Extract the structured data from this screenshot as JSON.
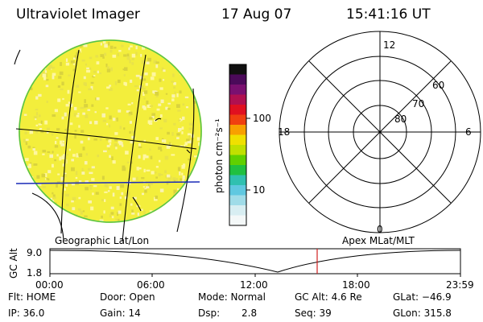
{
  "header": {
    "instrument": "Ultraviolet Imager",
    "date": "17 Aug 07",
    "time": "15:41:16 UT"
  },
  "colors": {
    "disk_fill": "#F3EE3C",
    "disk_edge": "#4FC24F",
    "grid_line": "#000000",
    "equator_line": "#1A2BB8",
    "marker_line": "#D02020"
  },
  "left_panel": {
    "caption": "Geographic Lat/Lon",
    "icon": "earth-disk"
  },
  "colorbar": {
    "unit_label": "photon cm⁻²s⁻¹",
    "ticks": [
      "100",
      "10"
    ],
    "scale": "log",
    "colors": [
      "#101010",
      "#4B0A5A",
      "#7A1070",
      "#B01050",
      "#E01020",
      "#F04010",
      "#F8A000",
      "#F0E000",
      "#C0E000",
      "#60D000",
      "#20C040",
      "#30C0B0",
      "#60C8E0",
      "#A0DCE8",
      "#D8EEF2",
      "#F4F8F8"
    ]
  },
  "right_panel": {
    "caption": "Apex MLat/MLT",
    "mlt_labels": {
      "top": "12",
      "right": "6",
      "bottom": "0",
      "left": "18"
    },
    "lat_labels": [
      "60",
      "70",
      "80"
    ]
  },
  "timeline": {
    "y_axis_label": "GC Alt",
    "y_ticks": [
      "9.0",
      "1.8"
    ],
    "x_ticks": [
      "00:00",
      "06:00",
      "12:00",
      "18:00",
      "23:59"
    ],
    "current_marker_time": "15:41"
  },
  "status": {
    "flt": "Flt: HOME",
    "ip": "IP: 36.0",
    "door": "Door: Open",
    "gain": "Gain: 14",
    "mode": "Mode: Normal",
    "dsp_label": "Dsp:",
    "dsp_value": "2.8",
    "gc_alt": "GC Alt: 4.6 Re",
    "seq": "Seq: 39",
    "glat": "GLat: −46.9",
    "glon": "GLon: 315.8"
  }
}
